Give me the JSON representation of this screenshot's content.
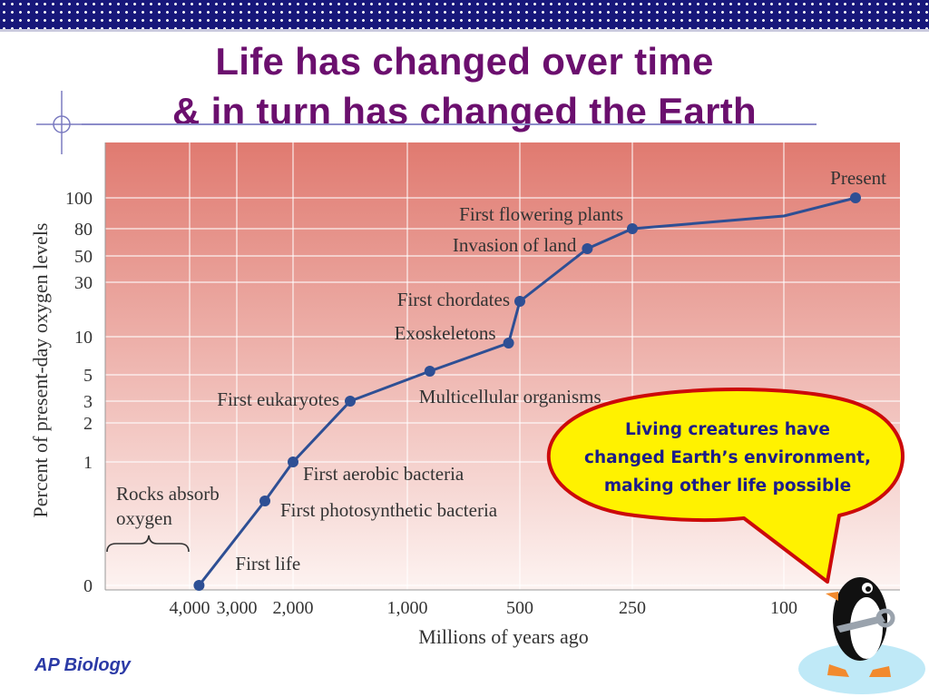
{
  "slide": {
    "title_line1": "Life has changed over time",
    "title_line2": "& in turn has changed the Earth",
    "footer_label": "AP Biology"
  },
  "callout": {
    "line1": "Living creatures have",
    "line2": "changed Earth’s environment,",
    "line3": "making other life possible"
  },
  "colors": {
    "title": "#6b0f6e",
    "header_bar": "#17177a",
    "series_line": "#2e4f94",
    "plot_top": "#e07a70",
    "plot_bottom": "#fdf3f1",
    "callout_fill": "#fff200",
    "callout_border": "#cc0a0a"
  },
  "chart_data": {
    "type": "line",
    "xlabel": "Millions of years ago",
    "ylabel": "Percent of present-day oxygen levels",
    "x_ticks": [
      "4,000",
      "3,000",
      "2,000",
      "1,000",
      "500",
      "250",
      "100"
    ],
    "y_ticks": [
      "0",
      "1",
      "2",
      "3",
      "5",
      "10",
      "30",
      "50",
      "80",
      "100"
    ],
    "grid": true,
    "series": [
      {
        "points": [
          {
            "x": 3800,
            "y": 0
          },
          {
            "x": 2500,
            "y": 0.5
          },
          {
            "x": 2000,
            "y": 1
          },
          {
            "x": 1500,
            "y": 3
          },
          {
            "x": 900,
            "y": 5.5
          },
          {
            "x": 550,
            "y": 9
          },
          {
            "x": 500,
            "y": 20
          },
          {
            "x": 350,
            "y": 55
          },
          {
            "x": 250,
            "y": 80
          },
          {
            "x": 100,
            "y": 90
          },
          {
            "x": 0,
            "y": 100
          }
        ]
      }
    ],
    "annotations": [
      {
        "text": "First life",
        "x": 3800,
        "y": 0
      },
      {
        "text": "First photosynthetic bacteria",
        "x": 2500,
        "y": 0.5
      },
      {
        "text": "First aerobic bacteria",
        "x": 2000,
        "y": 1
      },
      {
        "text": "First eukaryotes",
        "x": 1500,
        "y": 3
      },
      {
        "text": "Multicellular organisms",
        "x": 900,
        "y": 5.5
      },
      {
        "text": "Exoskeletons",
        "x": 550,
        "y": 9
      },
      {
        "text": "First chordates",
        "x": 500,
        "y": 20
      },
      {
        "text": "Invasion of land",
        "x": 350,
        "y": 55
      },
      {
        "text": "First flowering plants",
        "x": 250,
        "y": 80
      },
      {
        "text": "Present",
        "x": 0,
        "y": 100
      }
    ],
    "bracket_label_line1": "Rocks absorb",
    "bracket_label_line2": "oxygen"
  }
}
